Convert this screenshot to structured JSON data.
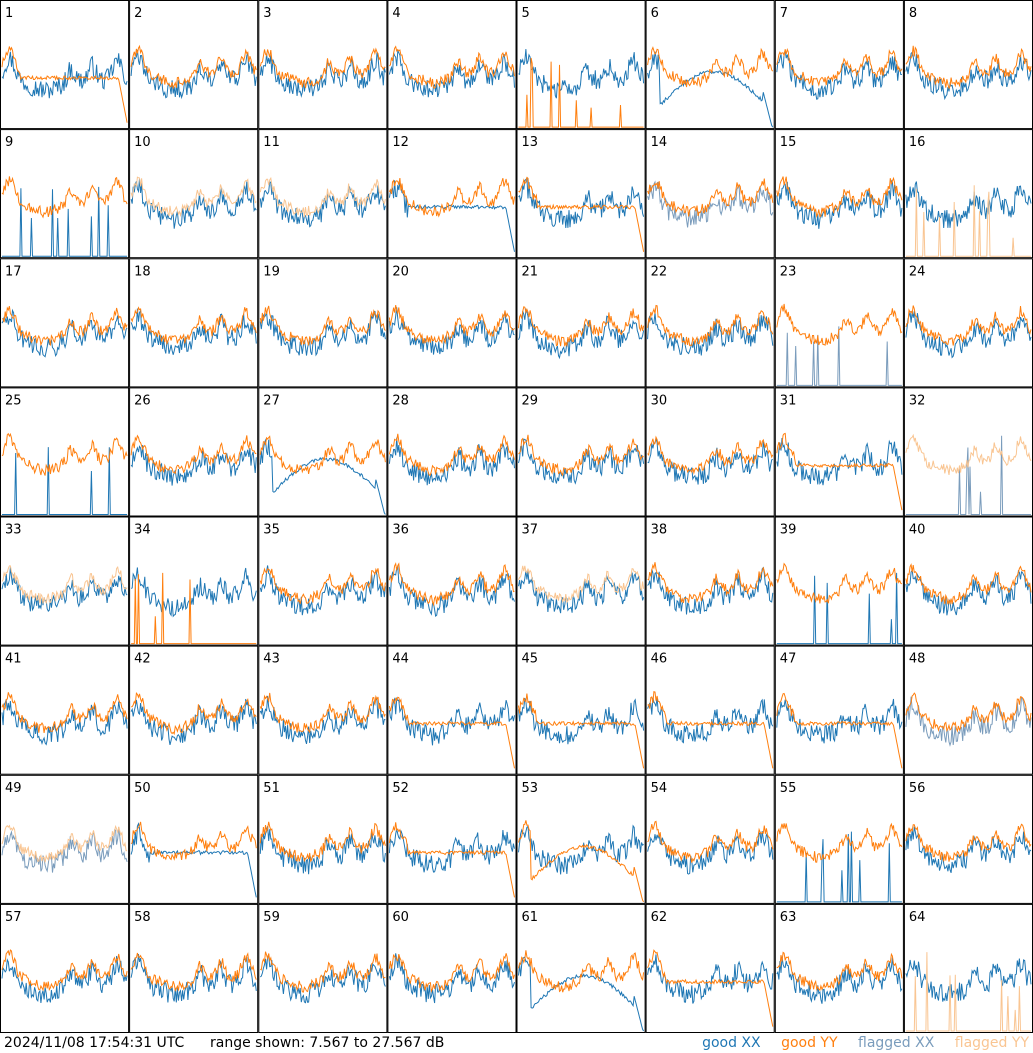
{
  "timestamp": "2024/11/08 17:54:31 UTC",
  "range_text": "range shown: 7.567 to 27.567 dB",
  "colors": {
    "good_xx": "#1f77b4",
    "good_yy": "#ff7f0e",
    "flagged_xx": "#7a9cbc",
    "flagged_yy": "#f9c592"
  },
  "legend": {
    "good_xx": "good XX",
    "good_yy": "good YY",
    "flagged_xx": "flagged XX",
    "flagged_yy": "flagged YY"
  },
  "chart_data": {
    "type": "line",
    "grid": "8x8 small multiples",
    "ylim": [
      7.567,
      27.567
    ],
    "ylabel": "dB",
    "panels": [
      {
        "id": "1",
        "xx": "good",
        "yy": "good",
        "xx_shape": "normal",
        "yy_shape": "dropend"
      },
      {
        "id": "2",
        "xx": "good",
        "yy": "good",
        "xx_shape": "normal",
        "yy_shape": "normal"
      },
      {
        "id": "3",
        "xx": "good",
        "yy": "good",
        "xx_shape": "normal",
        "yy_shape": "normal"
      },
      {
        "id": "4",
        "xx": "good",
        "yy": "good",
        "xx_shape": "normal",
        "yy_shape": "normal"
      },
      {
        "id": "5",
        "xx": "good",
        "yy": "good",
        "xx_shape": "normal",
        "yy_shape": "dead"
      },
      {
        "id": "6",
        "xx": "good",
        "yy": "good",
        "xx_shape": "hump",
        "yy_shape": "normal"
      },
      {
        "id": "7",
        "xx": "good",
        "yy": "good",
        "xx_shape": "normal",
        "yy_shape": "normal"
      },
      {
        "id": "8",
        "xx": "good",
        "yy": "good",
        "xx_shape": "normal",
        "yy_shape": "normal"
      },
      {
        "id": "9",
        "xx": "good",
        "yy": "good",
        "xx_shape": "dead",
        "yy_shape": "normal"
      },
      {
        "id": "10",
        "xx": "good",
        "yy": "flagged",
        "xx_shape": "normal",
        "yy_shape": "normal"
      },
      {
        "id": "11",
        "xx": "good",
        "yy": "flagged",
        "xx_shape": "normal",
        "yy_shape": "normal"
      },
      {
        "id": "12",
        "xx": "good",
        "yy": "good",
        "xx_shape": "dropend",
        "yy_shape": "normal"
      },
      {
        "id": "13",
        "xx": "good",
        "yy": "good",
        "xx_shape": "normal",
        "yy_shape": "dropend"
      },
      {
        "id": "14",
        "xx": "flagged",
        "yy": "good",
        "xx_shape": "normal",
        "yy_shape": "normal"
      },
      {
        "id": "15",
        "xx": "good",
        "yy": "good",
        "xx_shape": "normal",
        "yy_shape": "normal"
      },
      {
        "id": "16",
        "xx": "good",
        "yy": "flagged",
        "xx_shape": "normal",
        "yy_shape": "dead"
      },
      {
        "id": "17",
        "xx": "good",
        "yy": "good",
        "xx_shape": "normal",
        "yy_shape": "normal"
      },
      {
        "id": "18",
        "xx": "good",
        "yy": "good",
        "xx_shape": "normal",
        "yy_shape": "normal"
      },
      {
        "id": "19",
        "xx": "good",
        "yy": "good",
        "xx_shape": "normal",
        "yy_shape": "normal"
      },
      {
        "id": "20",
        "xx": "good",
        "yy": "good",
        "xx_shape": "normal",
        "yy_shape": "normal"
      },
      {
        "id": "21",
        "xx": "good",
        "yy": "good",
        "xx_shape": "normal",
        "yy_shape": "normal"
      },
      {
        "id": "22",
        "xx": "good",
        "yy": "good",
        "xx_shape": "normal",
        "yy_shape": "normal"
      },
      {
        "id": "23",
        "xx": "flagged",
        "yy": "good",
        "xx_shape": "dead",
        "yy_shape": "normal"
      },
      {
        "id": "24",
        "xx": "good",
        "yy": "good",
        "xx_shape": "normal",
        "yy_shape": "normal"
      },
      {
        "id": "25",
        "xx": "good",
        "yy": "good",
        "xx_shape": "dead",
        "yy_shape": "normal"
      },
      {
        "id": "26",
        "xx": "good",
        "yy": "good",
        "xx_shape": "normal",
        "yy_shape": "normal"
      },
      {
        "id": "27",
        "xx": "good",
        "yy": "good",
        "xx_shape": "hump",
        "yy_shape": "normal"
      },
      {
        "id": "28",
        "xx": "good",
        "yy": "good",
        "xx_shape": "normal",
        "yy_shape": "normal"
      },
      {
        "id": "29",
        "xx": "good",
        "yy": "good",
        "xx_shape": "normal",
        "yy_shape": "normal"
      },
      {
        "id": "30",
        "xx": "good",
        "yy": "good",
        "xx_shape": "normal",
        "yy_shape": "normal"
      },
      {
        "id": "31",
        "xx": "good",
        "yy": "good",
        "xx_shape": "normal",
        "yy_shape": "dropend"
      },
      {
        "id": "32",
        "xx": "flagged",
        "yy": "flagged",
        "xx_shape": "dead",
        "yy_shape": "normal"
      },
      {
        "id": "33",
        "xx": "good",
        "yy": "flagged",
        "xx_shape": "normal",
        "yy_shape": "normal"
      },
      {
        "id": "34",
        "xx": "good",
        "yy": "good",
        "xx_shape": "normal",
        "yy_shape": "dead"
      },
      {
        "id": "35",
        "xx": "good",
        "yy": "good",
        "xx_shape": "normal",
        "yy_shape": "normal"
      },
      {
        "id": "36",
        "xx": "good",
        "yy": "good",
        "xx_shape": "normal",
        "yy_shape": "normal"
      },
      {
        "id": "37",
        "xx": "good",
        "yy": "flagged",
        "xx_shape": "normal",
        "yy_shape": "normal"
      },
      {
        "id": "38",
        "xx": "good",
        "yy": "good",
        "xx_shape": "normal",
        "yy_shape": "normal"
      },
      {
        "id": "39",
        "xx": "good",
        "yy": "good",
        "xx_shape": "dead",
        "yy_shape": "normal"
      },
      {
        "id": "40",
        "xx": "good",
        "yy": "good",
        "xx_shape": "normal",
        "yy_shape": "normal"
      },
      {
        "id": "41",
        "xx": "good",
        "yy": "good",
        "xx_shape": "normal",
        "yy_shape": "normal"
      },
      {
        "id": "42",
        "xx": "good",
        "yy": "good",
        "xx_shape": "normal",
        "yy_shape": "normal"
      },
      {
        "id": "43",
        "xx": "good",
        "yy": "good",
        "xx_shape": "normal",
        "yy_shape": "normal"
      },
      {
        "id": "44",
        "xx": "good",
        "yy": "good",
        "xx_shape": "normal",
        "yy_shape": "dropend"
      },
      {
        "id": "45",
        "xx": "good",
        "yy": "good",
        "xx_shape": "normal",
        "yy_shape": "dropend"
      },
      {
        "id": "46",
        "xx": "good",
        "yy": "good",
        "xx_shape": "normal",
        "yy_shape": "dropend"
      },
      {
        "id": "47",
        "xx": "good",
        "yy": "good",
        "xx_shape": "normal",
        "yy_shape": "dropend"
      },
      {
        "id": "48",
        "xx": "flagged",
        "yy": "good",
        "xx_shape": "normal",
        "yy_shape": "normal"
      },
      {
        "id": "49",
        "xx": "flagged",
        "yy": "flagged",
        "xx_shape": "normal",
        "yy_shape": "normal"
      },
      {
        "id": "50",
        "xx": "good",
        "yy": "good",
        "xx_shape": "dropend",
        "yy_shape": "normal"
      },
      {
        "id": "51",
        "xx": "good",
        "yy": "good",
        "xx_shape": "normal",
        "yy_shape": "normal"
      },
      {
        "id": "52",
        "xx": "good",
        "yy": "good",
        "xx_shape": "normal",
        "yy_shape": "dropend"
      },
      {
        "id": "53",
        "xx": "good",
        "yy": "good",
        "xx_shape": "normal",
        "yy_shape": "hump"
      },
      {
        "id": "54",
        "xx": "good",
        "yy": "good",
        "xx_shape": "normal",
        "yy_shape": "normal"
      },
      {
        "id": "55",
        "xx": "good",
        "yy": "good",
        "xx_shape": "dead",
        "yy_shape": "normal"
      },
      {
        "id": "56",
        "xx": "good",
        "yy": "good",
        "xx_shape": "normal",
        "yy_shape": "normal"
      },
      {
        "id": "57",
        "xx": "good",
        "yy": "good",
        "xx_shape": "normal",
        "yy_shape": "normal"
      },
      {
        "id": "58",
        "xx": "good",
        "yy": "good",
        "xx_shape": "normal",
        "yy_shape": "normal"
      },
      {
        "id": "59",
        "xx": "good",
        "yy": "good",
        "xx_shape": "normal",
        "yy_shape": "normal"
      },
      {
        "id": "60",
        "xx": "good",
        "yy": "good",
        "xx_shape": "normal",
        "yy_shape": "normal"
      },
      {
        "id": "61",
        "xx": "good",
        "yy": "good",
        "xx_shape": "hump",
        "yy_shape": "normal"
      },
      {
        "id": "62",
        "xx": "good",
        "yy": "good",
        "xx_shape": "normal",
        "yy_shape": "dropend"
      },
      {
        "id": "63",
        "xx": "good",
        "yy": "good",
        "xx_shape": "normal",
        "yy_shape": "normal"
      },
      {
        "id": "64",
        "xx": "good",
        "yy": "flagged",
        "xx_shape": "normal",
        "yy_shape": "dead"
      }
    ]
  }
}
